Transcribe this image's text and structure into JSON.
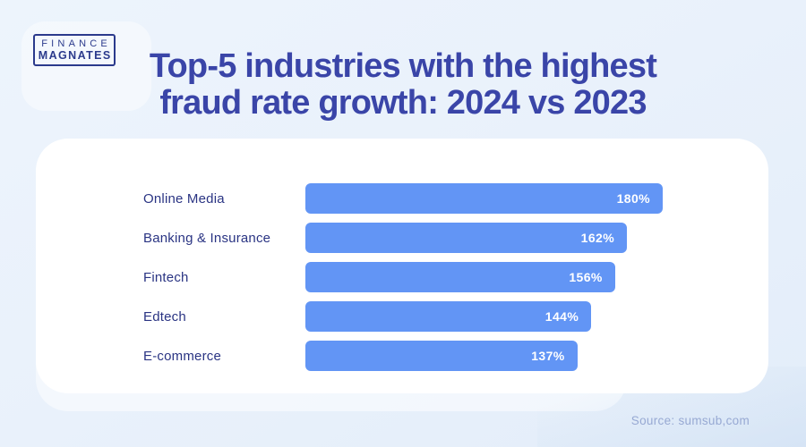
{
  "logo": {
    "line1": "FINANCE",
    "line2": "MAGNATES"
  },
  "title": {
    "line1": "Top-5 industries with the highest",
    "line2": "fraud rate growth: 2024 vs 2023"
  },
  "source": "Source: sumsub,com",
  "colors": {
    "background": "#E9F1FB",
    "card": "#FFFFFF",
    "title_text": "#3A45A8",
    "label_text": "#2A3483",
    "bar_fill": "#6295F5",
    "value_text": "#FFFFFF",
    "source_text": "#97A9D3",
    "logo_navy": "#2B3A8C"
  },
  "chart_data": {
    "type": "bar",
    "orientation": "horizontal",
    "title": "Top-5 industries with the highest fraud rate growth: 2024 vs 2023",
    "categories": [
      "Online Media",
      "Banking & Insurance",
      "Fintech",
      "Edtech",
      "E-commerce"
    ],
    "values": [
      180,
      162,
      156,
      144,
      137
    ],
    "unit": "%",
    "value_labels": [
      "180%",
      "162%",
      "156%",
      "144%",
      "137%"
    ],
    "value_labels_position": "inside-end",
    "xlim": [
      0,
      180
    ],
    "grid": false,
    "legend": false,
    "axis_ticks": false
  }
}
